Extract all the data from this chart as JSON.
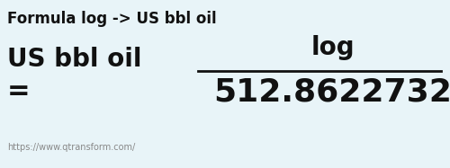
{
  "title": "Formula log -> US bbl oil",
  "unit_from": "log",
  "unit_to": "US bbl oil",
  "equals": "=",
  "value": "512.8622732",
  "url": "https://www.qtransform.com/",
  "bg_color": "#e8f4f8",
  "text_color": "#111111",
  "url_color": "#888888",
  "line_color": "#111111",
  "title_fontsize": 12,
  "unit_from_fontsize": 20,
  "unit_to_fontsize": 20,
  "value_fontsize": 26,
  "equals_fontsize": 22,
  "url_fontsize": 7
}
